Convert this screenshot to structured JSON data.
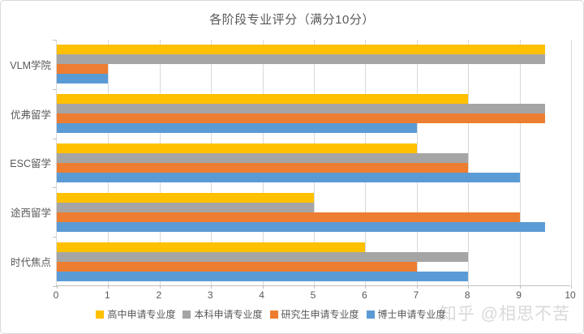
{
  "watermark": "知乎 @相思不苦",
  "palette": {
    "yellow": "#FFC000",
    "gray": "#A5A5A5",
    "orange": "#ED7D31",
    "blue": "#5B9BD5",
    "gridline": "#D9D9D9",
    "axis": "#BFBFBF",
    "text": "#595959"
  },
  "chart_data": {
    "type": "bar",
    "orientation": "horizontal",
    "title": "各阶段专业评分（满分10分）",
    "categories": [
      "VLM学院",
      "优弗留学",
      "ESC留学",
      "途西留学",
      "时代焦点"
    ],
    "series": [
      {
        "name": "高中申请专业度",
        "color": "#FFC000",
        "values": [
          9.5,
          8,
          7,
          5,
          6
        ]
      },
      {
        "name": "本科申请专业度",
        "color": "#A5A5A5",
        "values": [
          9.5,
          9.5,
          8,
          5,
          8
        ]
      },
      {
        "name": "研究生申请专业度",
        "color": "#ED7D31",
        "values": [
          1,
          9.5,
          8,
          9,
          7
        ]
      },
      {
        "name": "博士申请专业度",
        "color": "#5B9BD5",
        "values": [
          1,
          7,
          9,
          9.5,
          8
        ]
      }
    ],
    "xlim": [
      0,
      10
    ],
    "x_ticks": [
      0,
      1,
      2,
      3,
      4,
      5,
      6,
      7,
      8,
      9,
      10
    ],
    "grid": true,
    "legend_position": "bottom"
  }
}
